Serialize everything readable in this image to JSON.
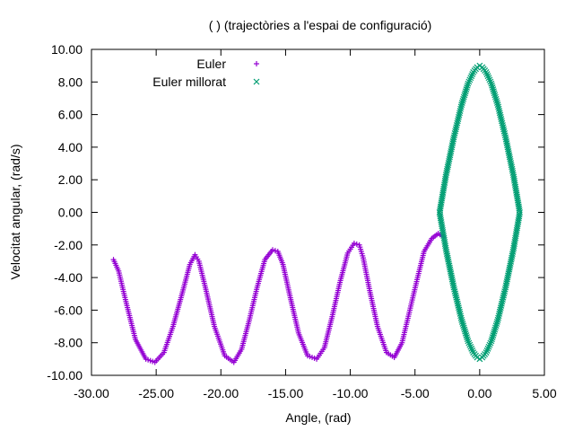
{
  "chart_data": {
    "type": "scatter",
    "title": "( ) (trajectòries a l'espai de configuració)",
    "xlabel": "Angle,   (rad)",
    "ylabel": "Velocitat angular,   (rad/s)",
    "xlim": [
      -30,
      5
    ],
    "ylim": [
      -10,
      10
    ],
    "x_ticks": [
      "-30.00",
      "-25.00",
      "-20.00",
      "-15.00",
      "-10.00",
      "-5.00",
      "0.00",
      "5.00"
    ],
    "y_ticks": [
      "-10.00",
      "-8.00",
      "-6.00",
      "-4.00",
      "-2.00",
      "0.00",
      "2.00",
      "4.00",
      "6.00",
      "8.00",
      "10.00"
    ],
    "grid": false,
    "legend_position": "top-left",
    "series": [
      {
        "name": "Euler",
        "marker": "plus",
        "color": "#9400d3",
        "x": [
          -28.3,
          -27.9,
          -27.3,
          -26.6,
          -25.8,
          -25.1,
          -24.4,
          -23.7,
          -23.0,
          -22.4,
          -22.0,
          -21.7,
          -21.2,
          -20.5,
          -19.7,
          -19.0,
          -18.4,
          -17.8,
          -17.2,
          -16.6,
          -16.0,
          -15.6,
          -15.2,
          -14.7,
          -14.0,
          -13.3,
          -12.6,
          -12.0,
          -11.4,
          -10.8,
          -10.2,
          -9.7,
          -9.3,
          -9.0,
          -8.5,
          -7.9,
          -7.2,
          -6.6,
          -6.0,
          -5.4,
          -4.8,
          -4.3,
          -3.7,
          -3.2,
          -2.8
        ],
        "y": [
          -2.9,
          -3.6,
          -5.6,
          -7.8,
          -9.0,
          -9.2,
          -8.6,
          -7.0,
          -5.0,
          -3.2,
          -2.6,
          -3.0,
          -4.6,
          -7.0,
          -8.8,
          -9.2,
          -8.4,
          -6.6,
          -4.6,
          -2.9,
          -2.3,
          -2.4,
          -3.2,
          -5.0,
          -7.4,
          -8.8,
          -9.0,
          -8.3,
          -6.4,
          -4.3,
          -2.5,
          -1.9,
          -2.0,
          -2.8,
          -4.8,
          -7.0,
          -8.6,
          -8.9,
          -8.0,
          -6.0,
          -4.0,
          -2.4,
          -1.6,
          -1.3,
          -1.5
        ]
      },
      {
        "name": "Euler millorat",
        "marker": "cross",
        "color": "#009e73",
        "x": [
          -3.1,
          -2.6,
          -2.0,
          -1.4,
          -0.9,
          -0.5,
          -0.2,
          0.0,
          0.2,
          0.5,
          0.9,
          1.4,
          2.0,
          2.6,
          3.1,
          2.6,
          2.0,
          1.4,
          0.9,
          0.5,
          0.2,
          0.0,
          -0.2,
          -0.5,
          -0.9,
          -1.4,
          -2.0,
          -2.6,
          -3.1
        ],
        "y": [
          0.0,
          2.3,
          4.6,
          6.6,
          7.9,
          8.6,
          8.9,
          9.0,
          8.9,
          8.6,
          7.9,
          6.6,
          4.6,
          2.3,
          0.0,
          -2.3,
          -4.6,
          -6.6,
          -7.9,
          -8.6,
          -8.9,
          -9.0,
          -8.9,
          -8.6,
          -7.9,
          -6.6,
          -4.6,
          -2.3,
          0.0
        ]
      }
    ]
  }
}
